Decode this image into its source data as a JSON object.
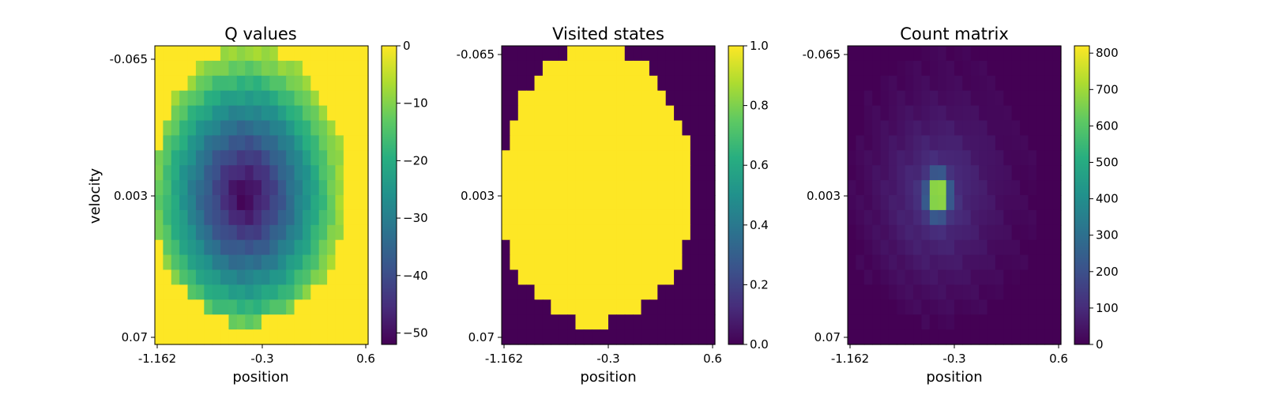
{
  "chart_data": [
    {
      "type": "heatmap",
      "title": "Q values",
      "xlabel": "position",
      "ylabel": "velocity",
      "xticks": [
        "-1.162",
        "-0.3",
        "0.6"
      ],
      "yticks": [
        "-0.065",
        "0.003",
        "0.07"
      ],
      "colorbar": {
        "range": [
          -52,
          0
        ],
        "ticks": [
          0,
          -10,
          -20,
          -30,
          -40,
          -50
        ],
        "tick_labels": [
          "0",
          "−10",
          "−20",
          "−30",
          "−40",
          "−50"
        ]
      },
      "colormap": "viridis",
      "outside_value": 0,
      "min_value": -52,
      "min_location": {
        "position": -0.45,
        "velocity": 0.003
      },
      "edge_value": -8
    },
    {
      "type": "heatmap",
      "title": "Visited states",
      "xlabel": "position",
      "xticks": [
        "-1.162",
        "-0.3",
        "0.6"
      ],
      "yticks": [
        "-0.065",
        "0.003",
        "0.07"
      ],
      "colorbar": {
        "range": [
          0,
          1
        ],
        "ticks": [
          0,
          0.2,
          0.4,
          0.6,
          0.8,
          1.0
        ],
        "tick_labels": [
          "0.0",
          "0.2",
          "0.4",
          "0.6",
          "0.8",
          "1.0"
        ]
      },
      "colormap": "viridis",
      "inside_value": 1,
      "outside_value": 0
    },
    {
      "type": "heatmap",
      "title": "Count matrix",
      "xlabel": "position",
      "xticks": [
        "-1.162",
        "-0.3",
        "0.6"
      ],
      "yticks": [
        "-0.065",
        "0.003",
        "0.07"
      ],
      "colorbar": {
        "range": [
          0,
          820
        ],
        "ticks": [
          0,
          100,
          200,
          300,
          400,
          500,
          600,
          700,
          800
        ],
        "tick_labels": [
          "0",
          "100",
          "200",
          "300",
          "400",
          "500",
          "600",
          "700",
          "800"
        ]
      },
      "colormap": "viridis",
      "peak_value": 820,
      "peak_location": {
        "position": -0.45,
        "velocity": 0.003
      }
    }
  ]
}
